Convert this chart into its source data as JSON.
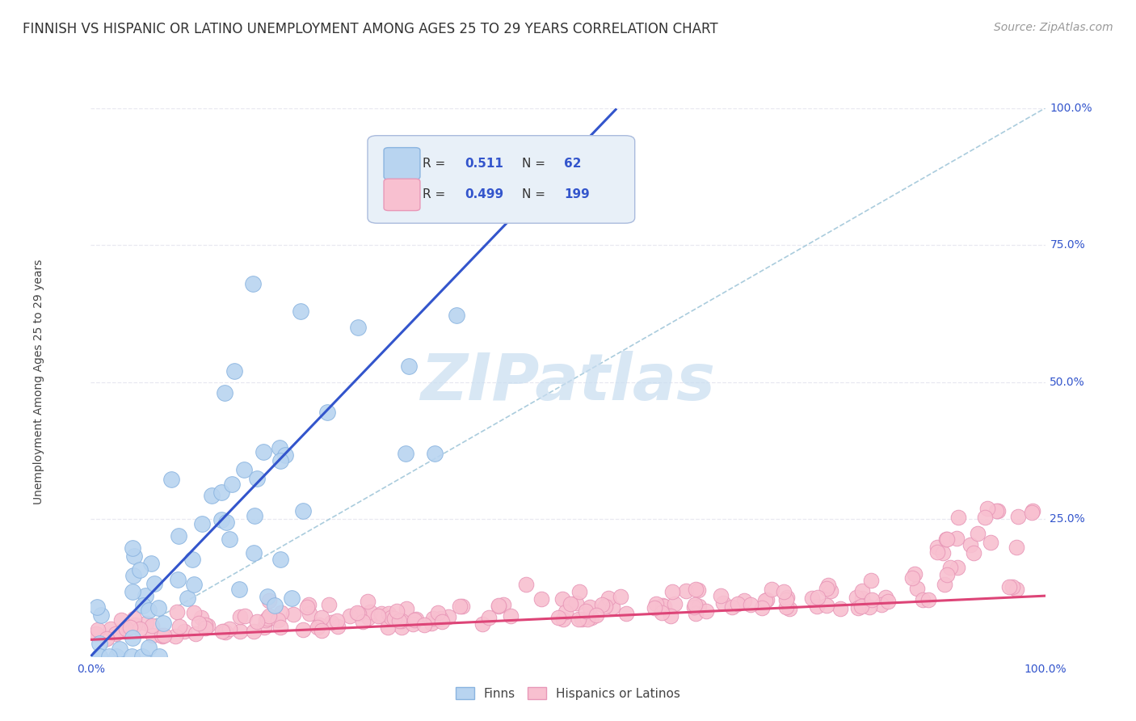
{
  "title": "FINNISH VS HISPANIC OR LATINO UNEMPLOYMENT AMONG AGES 25 TO 29 YEARS CORRELATION CHART",
  "source": "Source: ZipAtlas.com",
  "ylabel": "Unemployment Among Ages 25 to 29 years",
  "xlim": [
    0,
    1
  ],
  "ylim": [
    0,
    1
  ],
  "right_yticks": [
    0.0,
    0.25,
    0.5,
    0.75,
    1.0
  ],
  "right_yticklabels": [
    "",
    "25.0%",
    "50.0%",
    "75.0%",
    "100.0%"
  ],
  "xticklabels_left": "0.0%",
  "xticklabels_right": "100.0%",
  "finns_R": 0.511,
  "finns_N": 62,
  "hispanics_R": 0.499,
  "hispanics_N": 199,
  "finns_color": "#b8d4f0",
  "finns_edge_color": "#8ab4e0",
  "hispanics_color": "#f8c0d0",
  "hispanics_edge_color": "#e898b8",
  "finns_line_color": "#3355cc",
  "hispanics_line_color": "#dd4477",
  "ref_line_color": "#aaccdd",
  "ref_line_style": "--",
  "watermark_color": "#c8ddf0",
  "background_color": "#ffffff",
  "grid_color": "#e8e8f0",
  "title_fontsize": 12,
  "source_fontsize": 10,
  "legend_fontsize": 11,
  "axis_label_fontsize": 10,
  "tick_fontsize": 10,
  "tick_color": "#3355cc",
  "legend_R_color": "#3355cc",
  "legend_box_color": "#e8f0f8",
  "legend_box_edge": "#aabbdd"
}
